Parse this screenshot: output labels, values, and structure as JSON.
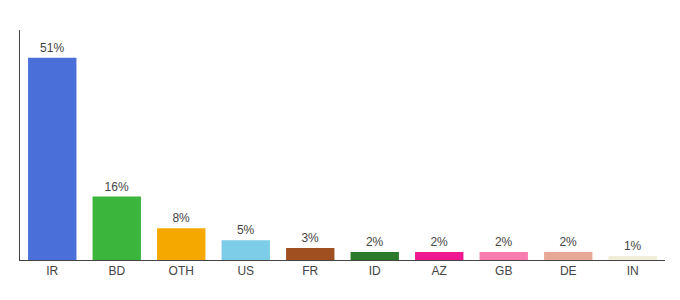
{
  "chart_data": {
    "type": "bar",
    "categories": [
      "IR",
      "BD",
      "OTH",
      "US",
      "FR",
      "ID",
      "AZ",
      "GB",
      "DE",
      "IN"
    ],
    "values": [
      51,
      16,
      8,
      5,
      3,
      2,
      2,
      2,
      2,
      1
    ],
    "value_labels": [
      "51%",
      "16%",
      "8%",
      "5%",
      "3%",
      "2%",
      "2%",
      "2%",
      "2%",
      "1%"
    ],
    "colors": [
      "#4a6fd8",
      "#3cb53c",
      "#f5a800",
      "#7dcde8",
      "#a05020",
      "#2a7a2a",
      "#f01890",
      "#f87cb0",
      "#e8a898",
      "#f0edd8"
    ],
    "ylim": [
      0,
      58
    ],
    "data_labels": true,
    "tick_labels": "x",
    "grid": false
  }
}
